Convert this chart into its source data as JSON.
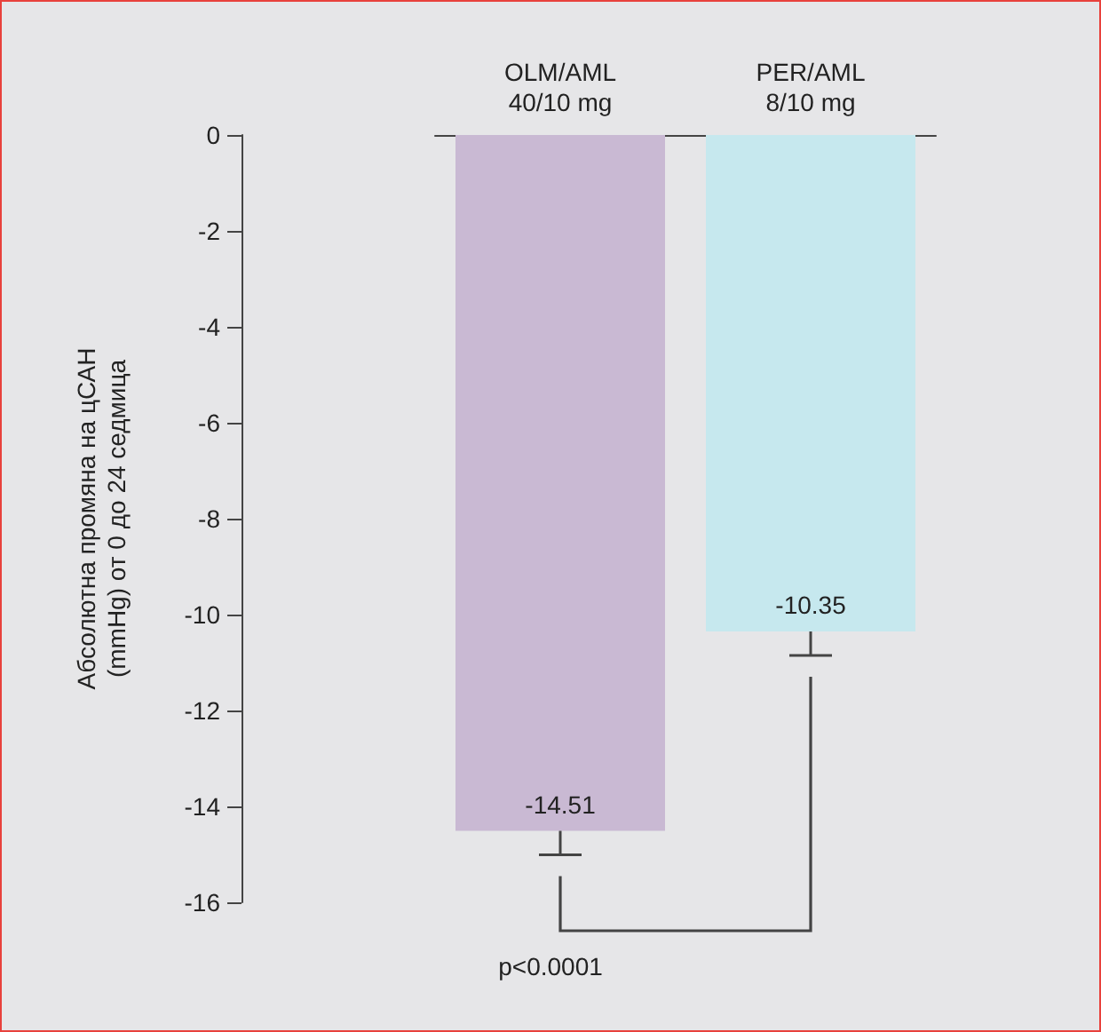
{
  "chart_data": {
    "type": "bar",
    "categories": [
      "OLM/AML\n40/10 mg",
      "PER/AML\n8/10 mg"
    ],
    "series": [
      {
        "values": [
          -14.51,
          -10.35
        ],
        "colors": [
          "#c9b9d3",
          "#c6e8ee"
        ],
        "errors": [
          [
            -15.01,
            -14.51
          ],
          [
            -10.85,
            -10.35
          ]
        ]
      }
    ],
    "ylabel": "Абсолютна промяна на цСАН\n(mmHg) от 0 до 24 седмица",
    "ylim": [
      -16,
      0
    ],
    "yticks": [
      0,
      -2,
      -4,
      -6,
      -8,
      -10,
      -12,
      -14,
      -16
    ],
    "data_labels": true,
    "grid": false,
    "annotations": [
      "p<0.0001"
    ]
  }
}
